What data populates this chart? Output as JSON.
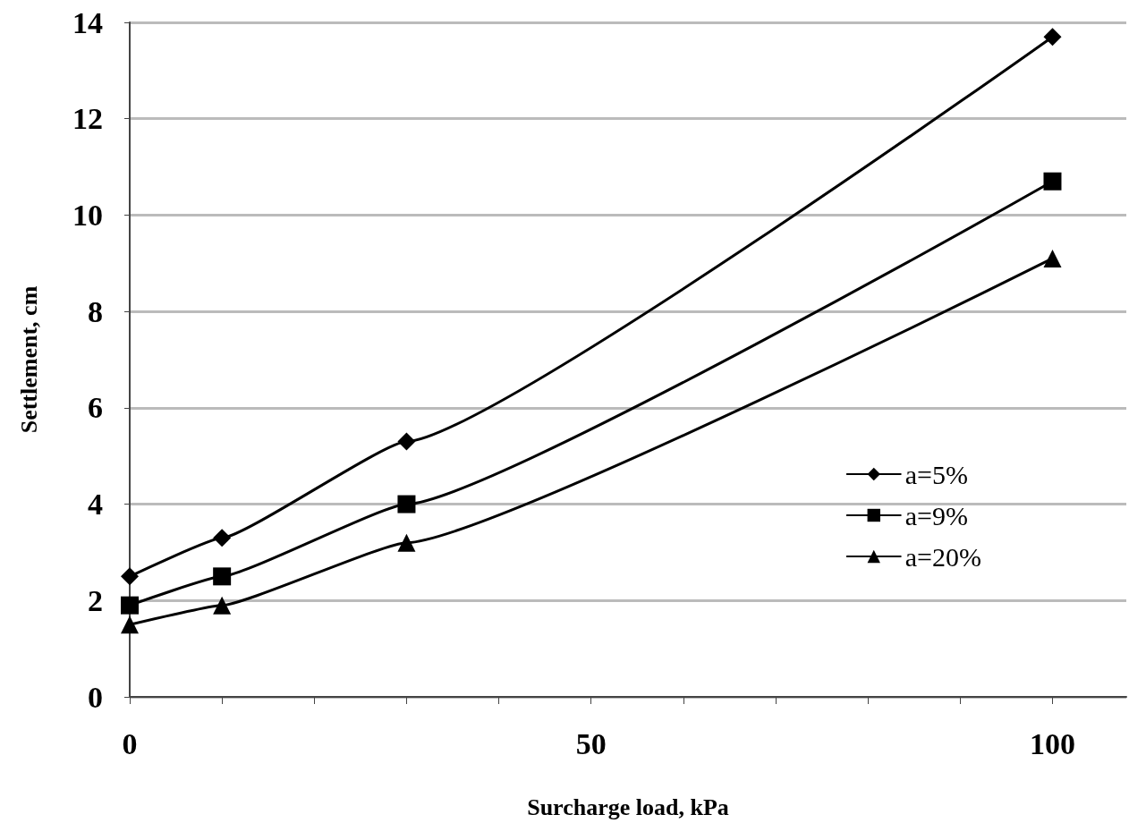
{
  "chart_data": {
    "type": "line",
    "xlabel": "Surcharge load, kPa",
    "ylabel": "Settlement, cm",
    "x": [
      0,
      10,
      30,
      100
    ],
    "series": [
      {
        "name": "a=5%",
        "color": "#000000",
        "values": [
          2.5,
          3.3,
          5.3,
          13.7
        ],
        "marker": "diamond"
      },
      {
        "name": "a=9%",
        "color": "#000000",
        "values": [
          1.9,
          2.5,
          4.0,
          10.7
        ],
        "marker": "square"
      },
      {
        "name": "a=20%",
        "color": "#000000",
        "values": [
          1.5,
          1.9,
          3.2,
          9.1
        ],
        "marker": "triangle"
      }
    ],
    "xlim": [
      0,
      108
    ],
    "xticks": [
      0,
      {
        "value": 10,
        "label": null
      },
      {
        "value": 20,
        "label": null
      },
      {
        "value": 30,
        "label": null
      },
      {
        "value": 40,
        "label": null
      },
      50,
      {
        "value": 60,
        "label": null
      },
      {
        "value": 70,
        "label": null
      },
      {
        "value": 80,
        "label": null
      },
      {
        "value": 90,
        "label": null
      },
      100
    ],
    "ylim": [
      0,
      14
    ],
    "yticks": [
      0,
      2,
      4,
      6,
      8,
      10,
      12,
      14
    ],
    "grid": "y",
    "legend": "right",
    "line_style": "solid"
  }
}
